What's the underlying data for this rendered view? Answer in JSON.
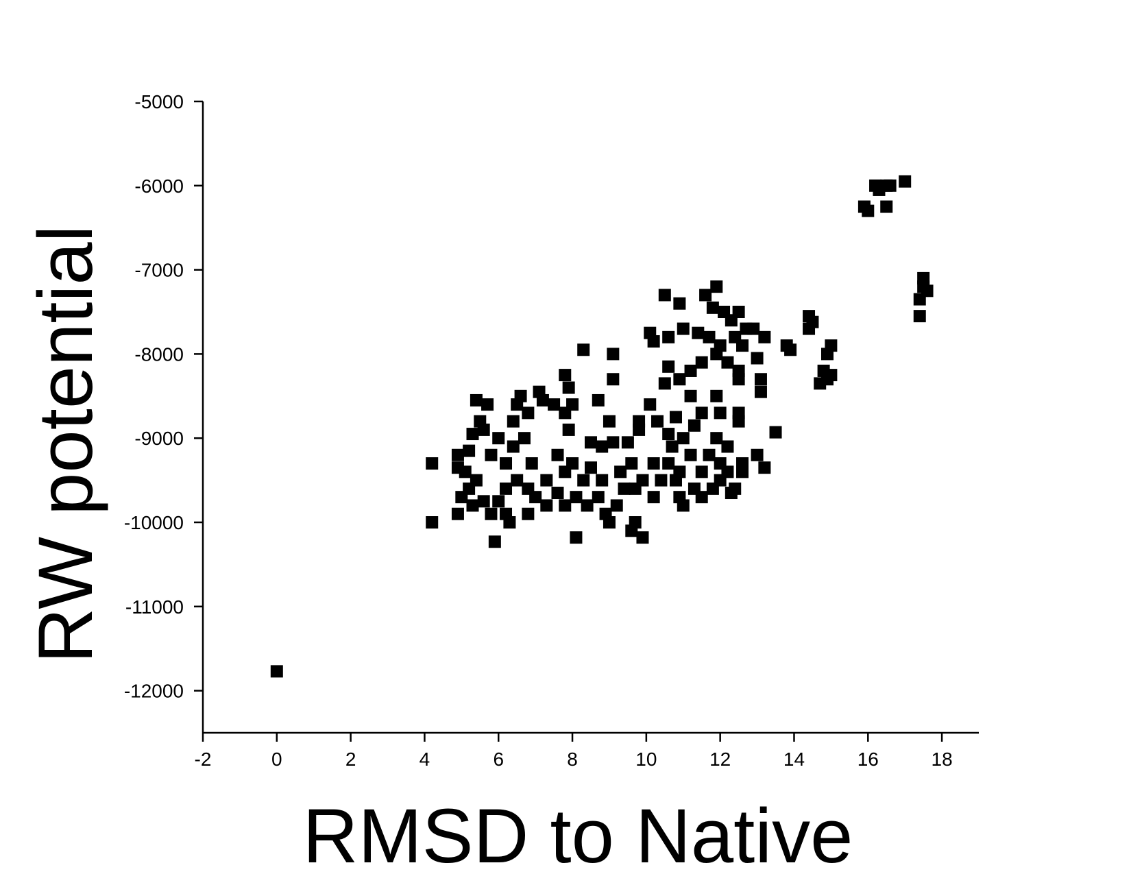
{
  "chart_data": {
    "type": "scatter",
    "x_label": "RMSD to Native",
    "y_label": "RW potential",
    "color": "#000000",
    "xlim": [
      -2,
      19
    ],
    "ylim": [
      -12500,
      -5000
    ],
    "xticks": [
      -2,
      0,
      2,
      4,
      6,
      8,
      10,
      12,
      14,
      16,
      18
    ],
    "yticks": [
      -12000,
      -11000,
      -10000,
      -9000,
      -8000,
      -7000,
      -6000,
      -5000
    ],
    "x": [
      0,
      4.2,
      4.2,
      16.2,
      16.5,
      16.5,
      15.9,
      16.0,
      16.3,
      17.0,
      16.6,
      17.5,
      17.5,
      17.6,
      17.4,
      17.4,
      14.4,
      14.5,
      14.4,
      13.8,
      13.9,
      15.0,
      14.9,
      14.8,
      14.7,
      14.9,
      15.0,
      13.5,
      13.0,
      13.2,
      13.1,
      13.1,
      13.0,
      13.2,
      12.9,
      12.5,
      12.3,
      11.9,
      11.6,
      10.5,
      10.9,
      11.8,
      12.1,
      10.1,
      10.2,
      10.6,
      11.0,
      11.4,
      11.7,
      12.0,
      12.4,
      12.7,
      12.6,
      11.2,
      11.5,
      11.9,
      12.2,
      12.5,
      12.5,
      10.6,
      10.9,
      10.5,
      11.2,
      11.9,
      12.0,
      12.5,
      12.5,
      11.5,
      10.8,
      10.3,
      10.1,
      9.8,
      9.8,
      9.5,
      9.1,
      8.8,
      8.5,
      8.3,
      9.1,
      9.1,
      8.7,
      9.0,
      7.8,
      7.9,
      8.0,
      7.8,
      7.9,
      7.5,
      7.1,
      7.2,
      6.6,
      6.5,
      6.8,
      6.4,
      5.4,
      5.7,
      5.5,
      5.6,
      5.3,
      5.2,
      4.9,
      4.9,
      5.1,
      5.0,
      5.2,
      5.4,
      4.9,
      5.3,
      5.6,
      5.8,
      6.0,
      6.2,
      6.3,
      5.9,
      6.2,
      6.5,
      6.2,
      5.8,
      6.0,
      6.4,
      6.7,
      6.9,
      6.8,
      6.8,
      7.0,
      7.3,
      7.3,
      7.6,
      7.8,
      7.8,
      7.6,
      8.0,
      8.1,
      8.1,
      8.3,
      8.4,
      8.5,
      8.8,
      8.7,
      8.9,
      9.0,
      9.2,
      9.4,
      9.3,
      9.6,
      9.7,
      9.7,
      9.6,
      9.9,
      9.9,
      10.2,
      10.4,
      10.2,
      10.6,
      10.8,
      10.9,
      11.0,
      11.3,
      11.5,
      11.5,
      11.8,
      12.0,
      12.2,
      12.4,
      12.6,
      12.6,
      12.3,
      11.7,
      11.9,
      12.2,
      11.2,
      11.0,
      10.7,
      10.6,
      11.3,
      12.0,
      10.9
    ],
    "y": [
      -11770,
      -9300,
      -10000,
      -6000,
      -6000,
      -6250,
      -6250,
      -6300,
      -6050,
      -5950,
      -6000,
      -7100,
      -7200,
      -7250,
      -7350,
      -7550,
      -7550,
      -7620,
      -7700,
      -7900,
      -7950,
      -7900,
      -8000,
      -8200,
      -8350,
      -8300,
      -8250,
      -8930,
      -9200,
      -9350,
      -8300,
      -8450,
      -8050,
      -7800,
      -7700,
      -7500,
      -7600,
      -7200,
      -7300,
      -7300,
      -7400,
      -7450,
      -7500,
      -7750,
      -7850,
      -7800,
      -7700,
      -7750,
      -7800,
      -7900,
      -7800,
      -7700,
      -7900,
      -8200,
      -8100,
      -8000,
      -8100,
      -8200,
      -8300,
      -8150,
      -8300,
      -8350,
      -8500,
      -8500,
      -8700,
      -8800,
      -8700,
      -8700,
      -8750,
      -8800,
      -8600,
      -8800,
      -8900,
      -9050,
      -9050,
      -9100,
      -9050,
      -7950,
      -8000,
      -8300,
      -8550,
      -8800,
      -8250,
      -8400,
      -8600,
      -8700,
      -8900,
      -8600,
      -8450,
      -8550,
      -8500,
      -8600,
      -8700,
      -8800,
      -8550,
      -8600,
      -8800,
      -8900,
      -8950,
      -9150,
      -9200,
      -9350,
      -9400,
      -9700,
      -9600,
      -9500,
      -9900,
      -9800,
      -9750,
      -9900,
      -9750,
      -9900,
      -10000,
      -10230,
      -9600,
      -9500,
      -9300,
      -9200,
      -9000,
      -9100,
      -9000,
      -9300,
      -9600,
      -9900,
      -9700,
      -9500,
      -9800,
      -9650,
      -9800,
      -9400,
      -9200,
      -9300,
      -9700,
      -10180,
      -9500,
      -9800,
      -9350,
      -9500,
      -9700,
      -9900,
      -10000,
      -9800,
      -9600,
      -9400,
      -9300,
      -9600,
      -10000,
      -10100,
      -10180,
      -9500,
      -9700,
      -9500,
      -9300,
      -9300,
      -9500,
      -9700,
      -9800,
      -9600,
      -9400,
      -9700,
      -9600,
      -9500,
      -9400,
      -9600,
      -9400,
      -9300,
      -9650,
      -9200,
      -9000,
      -9100,
      -9200,
      -9000,
      -9100,
      -8950,
      -8850,
      -9300,
      -9400
    ]
  }
}
